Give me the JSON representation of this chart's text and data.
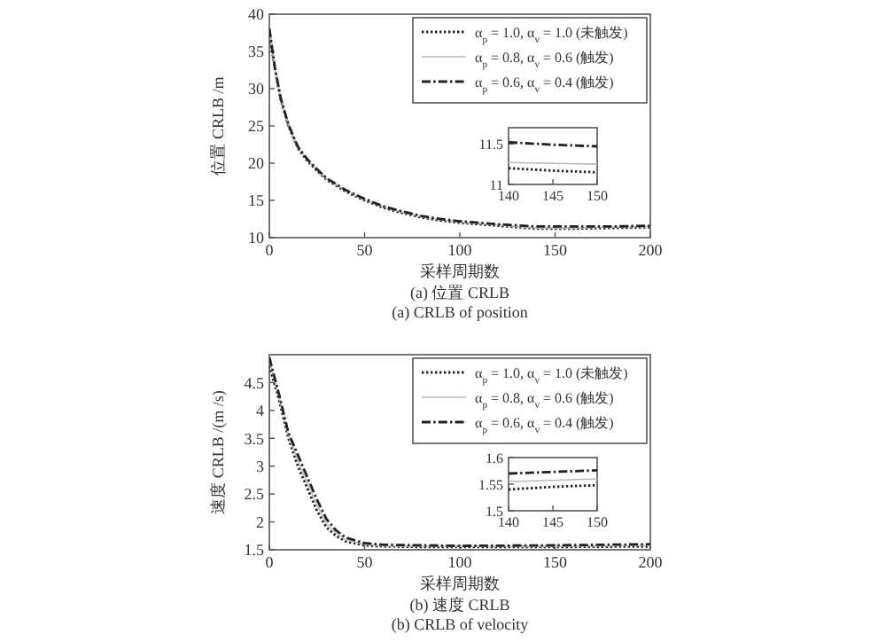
{
  "chart_data": [
    {
      "type": "line",
      "ylabel": "位置 CRLB /m",
      "xlabel": "采样周期数",
      "annotations": [
        "(a) 位置 CRLB",
        "(a) CRLB of position"
      ],
      "xlim": [
        0,
        200
      ],
      "ylim": [
        10,
        40
      ],
      "xticks": [
        0,
        50,
        100,
        150,
        200
      ],
      "yticks": [
        10,
        15,
        20,
        25,
        30,
        35,
        40
      ],
      "grid": false,
      "legend": "top right",
      "x": [
        0,
        3,
        6,
        10,
        15,
        20,
        25,
        30,
        40,
        50,
        60,
        70,
        80,
        90,
        100,
        120,
        140,
        150,
        160,
        180,
        200
      ],
      "series": [
        {
          "name": "α$_{p}$ = 1.0, α$_{v}$ = 1.0 (未触发)",
          "color": "#222222",
          "line_style": "dotted",
          "values": [
            37.5,
            32.5,
            28.5,
            25,
            22,
            20.3,
            19,
            17.8,
            16.2,
            15,
            14,
            13.3,
            12.7,
            12.3,
            12,
            11.6,
            11.2,
            11.2,
            11.2,
            11.3,
            11.4
          ]
        },
        {
          "name": "α$_{p}$ = 0.8, α$_{v}$ = 0.6 (触发)",
          "color": "#bbbbbb",
          "line_style": "solid",
          "values": [
            37.8,
            32.6,
            28.6,
            25.1,
            22.1,
            20.4,
            19.1,
            17.9,
            16.3,
            15.1,
            14.1,
            13.4,
            12.8,
            12.4,
            12.1,
            11.7,
            11.3,
            11.3,
            11.3,
            11.4,
            11.5
          ]
        },
        {
          "name": "α$_{p}$ = 0.6, α$_{v}$ = 0.4 (触发)",
          "color": "#222222",
          "line_style": "dashed",
          "values": [
            38.1,
            32.7,
            28.7,
            25.2,
            22.2,
            20.5,
            19.2,
            18,
            16.4,
            15.2,
            14.2,
            13.5,
            12.9,
            12.5,
            12.2,
            11.8,
            11.5,
            11.5,
            11.5,
            11.5,
            11.6
          ]
        }
      ]
    },
    {
      "type": "line",
      "xlim": [
        140,
        150
      ],
      "ylim": [
        11,
        11.7
      ],
      "xticks": [
        140,
        145,
        150
      ],
      "yticks": [
        11,
        11.5
      ],
      "grid": false,
      "x": [
        140,
        145,
        150
      ],
      "series": [
        {
          "color": "#222222",
          "line_style": "dotted",
          "values": [
            11.2,
            11.17,
            11.15
          ]
        },
        {
          "color": "#bbbbbb",
          "line_style": "solid",
          "values": [
            11.27,
            11.26,
            11.25
          ]
        },
        {
          "color": "#222222",
          "line_style": "dashed",
          "values": [
            11.52,
            11.49,
            11.47
          ]
        }
      ]
    },
    {
      "type": "line",
      "ylabel": "速度 CRLB /(m /s)",
      "xlabel": "采样周期数",
      "annotations": [
        "(b) 速度 CRLB",
        "(b) CRLB of velocity"
      ],
      "xlim": [
        0,
        200
      ],
      "ylim": [
        1.5,
        5
      ],
      "xticks": [
        0,
        50,
        100,
        150,
        200
      ],
      "yticks": [
        1.5,
        2,
        2.5,
        3,
        3.5,
        4,
        4.5
      ],
      "grid": false,
      "legend": "top right",
      "x": [
        0,
        5,
        10,
        15,
        20,
        25,
        30,
        35,
        40,
        50,
        60,
        80,
        100,
        150,
        200
      ],
      "series": [
        {
          "name": "α$_{p}$ = 1.0, α$_{v}$ = 1.0 (未触发)",
          "color": "#222222",
          "line_style": "dotted",
          "values": [
            4.8,
            4.2,
            3.5,
            3.0,
            2.6,
            2.2,
            1.9,
            1.75,
            1.65,
            1.58,
            1.56,
            1.55,
            1.55,
            1.55,
            1.56
          ]
        },
        {
          "name": "α$_{p}$ = 0.8, α$_{v}$ = 0.6 (触发)",
          "color": "#bbbbbb",
          "line_style": "solid",
          "values": [
            4.9,
            4.25,
            3.55,
            3.1,
            2.7,
            2.3,
            1.97,
            1.8,
            1.68,
            1.6,
            1.57,
            1.56,
            1.56,
            1.56,
            1.58
          ]
        },
        {
          "name": "α$_{p}$ = 0.6, α$_{v}$ = 0.4 (触发)",
          "color": "#222222",
          "line_style": "dashed",
          "values": [
            4.95,
            4.3,
            3.6,
            3.2,
            2.8,
            2.4,
            2.05,
            1.85,
            1.72,
            1.62,
            1.59,
            1.58,
            1.57,
            1.58,
            1.6
          ]
        }
      ]
    },
    {
      "type": "line",
      "xlim": [
        140,
        150
      ],
      "ylim": [
        1.5,
        1.6
      ],
      "xticks": [
        140,
        145,
        150
      ],
      "yticks": [
        1.5,
        1.55,
        1.6
      ],
      "grid": false,
      "x": [
        140,
        145,
        150
      ],
      "series": [
        {
          "color": "#222222",
          "line_style": "dotted",
          "values": [
            1.54,
            1.545,
            1.548
          ]
        },
        {
          "color": "#bbbbbb",
          "line_style": "solid",
          "values": [
            1.555,
            1.557,
            1.56
          ]
        },
        {
          "color": "#222222",
          "line_style": "dashed",
          "values": [
            1.57,
            1.573,
            1.576
          ]
        }
      ]
    }
  ]
}
